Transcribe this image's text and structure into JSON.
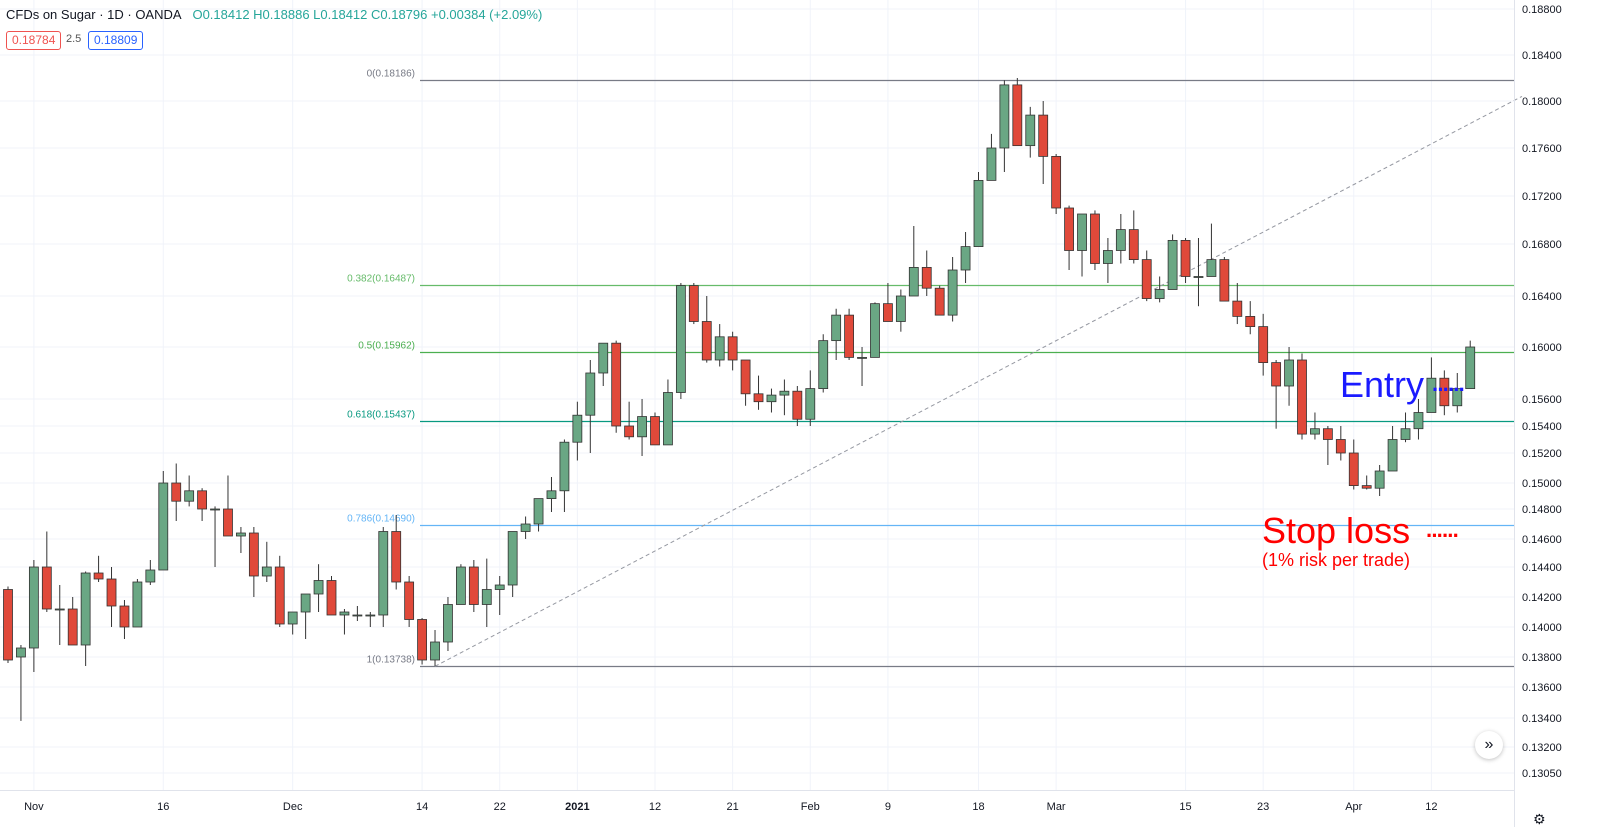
{
  "header": {
    "symbol": "CFDs on Sugar · 1D · OANDA",
    "ohlc": "O0.18412 H0.18886 L0.18412 C0.18796 +0.00384 (+2.09%)",
    "bid": "0.18784",
    "spread": "2.5",
    "ask": "0.18809"
  },
  "colors": {
    "up": "#6aa784",
    "down": "#e0493a",
    "bg": "#ffffff",
    "grid": "#f0f3fa"
  },
  "chart_data": {
    "type": "candlestick",
    "title": "",
    "ylim": [
      0.13,
      0.188
    ],
    "y_ticks": [
      "0.18800",
      "0.18400",
      "0.18000",
      "0.17600",
      "0.17200",
      "0.16800",
      "0.16400",
      "0.16000",
      "0.15600",
      "0.15400",
      "0.15200",
      "0.15000",
      "0.14800",
      "0.14600",
      "0.14400",
      "0.14200",
      "0.14000",
      "0.13800",
      "0.13600",
      "0.13400",
      "0.13200",
      "0.13050"
    ],
    "y_tick_values": [
      0.188,
      0.184,
      0.18,
      0.176,
      0.172,
      0.168,
      0.164,
      0.16,
      0.156,
      0.154,
      0.152,
      0.15,
      0.148,
      0.146,
      0.144,
      0.142,
      0.14,
      0.138,
      0.136,
      0.134,
      0.132,
      0.1305
    ],
    "x_ticks": [
      {
        "label": "Nov",
        "index": 2
      },
      {
        "label": "16",
        "index": 12
      },
      {
        "label": "Dec",
        "index": 22
      },
      {
        "label": "14",
        "index": 32
      },
      {
        "label": "22",
        "index": 38
      },
      {
        "label": "2021",
        "index": 44
      },
      {
        "label": "12",
        "index": 50
      },
      {
        "label": "21",
        "index": 56
      },
      {
        "label": "Feb",
        "index": 62
      },
      {
        "label": "9",
        "index": 68
      },
      {
        "label": "18",
        "index": 75
      },
      {
        "label": "Mar",
        "index": 81
      },
      {
        "label": "15",
        "index": 91
      },
      {
        "label": "23",
        "index": 97
      },
      {
        "label": "Apr",
        "index": 104
      },
      {
        "label": "12",
        "index": 110
      }
    ],
    "candles": [
      [
        0.1425,
        0.1427,
        0.1376,
        0.1378
      ],
      [
        0.138,
        0.1388,
        0.1338,
        0.1386
      ],
      [
        0.1386,
        0.1445,
        0.137,
        0.144
      ],
      [
        0.144,
        0.1465,
        0.141,
        0.1412
      ],
      [
        0.1412,
        0.1428,
        0.1388,
        0.1412
      ],
      [
        0.1412,
        0.142,
        0.1388,
        0.1388
      ],
      [
        0.1388,
        0.1437,
        0.1374,
        0.1436
      ],
      [
        0.1436,
        0.1448,
        0.143,
        0.1432
      ],
      [
        0.1432,
        0.144,
        0.14,
        0.1414
      ],
      [
        0.1414,
        0.1418,
        0.1392,
        0.14
      ],
      [
        0.14,
        0.1432,
        0.14,
        0.143
      ],
      [
        0.143,
        0.1445,
        0.1428,
        0.1438
      ],
      [
        0.1438,
        0.1508,
        0.1438,
        0.15
      ],
      [
        0.15,
        0.1513,
        0.1472,
        0.1486
      ],
      [
        0.1486,
        0.1505,
        0.1482,
        0.1494
      ],
      [
        0.1494,
        0.1496,
        0.1472,
        0.148
      ],
      [
        0.148,
        0.1482,
        0.144,
        0.148
      ],
      [
        0.148,
        0.1505,
        0.1462,
        0.1462
      ],
      [
        0.1462,
        0.1468,
        0.145,
        0.1464
      ],
      [
        0.1464,
        0.1468,
        0.142,
        0.1434
      ],
      [
        0.1434,
        0.1458,
        0.143,
        0.144
      ],
      [
        0.144,
        0.1448,
        0.14,
        0.1402
      ],
      [
        0.1402,
        0.141,
        0.1395,
        0.141
      ],
      [
        0.141,
        0.1422,
        0.1392,
        0.1422
      ],
      [
        0.1422,
        0.1442,
        0.141,
        0.1431
      ],
      [
        0.1431,
        0.1434,
        0.1408,
        0.1408
      ],
      [
        0.1408,
        0.1412,
        0.1395,
        0.141
      ],
      [
        0.1408,
        0.1414,
        0.1404,
        0.1408
      ],
      [
        0.1408,
        0.141,
        0.14,
        0.1408
      ],
      [
        0.1408,
        0.1468,
        0.14,
        0.1465
      ],
      [
        0.1465,
        0.1476,
        0.1425,
        0.143
      ],
      [
        0.143,
        0.1434,
        0.14,
        0.1405
      ],
      [
        0.1405,
        0.1406,
        0.1375,
        0.1378
      ],
      [
        0.1378,
        0.1398,
        0.1374,
        0.139
      ],
      [
        0.139,
        0.142,
        0.1384,
        0.1415
      ],
      [
        0.1415,
        0.1442,
        0.1415,
        0.144
      ],
      [
        0.144,
        0.1445,
        0.141,
        0.1415
      ],
      [
        0.1415,
        0.1446,
        0.14,
        0.1425
      ],
      [
        0.1425,
        0.1434,
        0.1408,
        0.1428
      ],
      [
        0.1428,
        0.1465,
        0.142,
        0.1465
      ],
      [
        0.1465,
        0.1475,
        0.146,
        0.147
      ],
      [
        0.147,
        0.1488,
        0.1465,
        0.1488
      ],
      [
        0.1488,
        0.1504,
        0.1478,
        0.1494
      ],
      [
        0.1494,
        0.153,
        0.1478,
        0.1528
      ],
      [
        0.1528,
        0.1558,
        0.1515,
        0.1548
      ],
      [
        0.1548,
        0.159,
        0.152,
        0.158
      ],
      [
        0.158,
        0.1603,
        0.157,
        0.1603
      ],
      [
        0.1603,
        0.1605,
        0.1535,
        0.154
      ],
      [
        0.154,
        0.1558,
        0.153,
        0.1532
      ],
      [
        0.1532,
        0.156,
        0.1518,
        0.1547
      ],
      [
        0.1547,
        0.155,
        0.1526,
        0.1526
      ],
      [
        0.1526,
        0.1575,
        0.1526,
        0.1565
      ],
      [
        0.1565,
        0.165,
        0.156,
        0.1648
      ],
      [
        0.1648,
        0.165,
        0.1618,
        0.162
      ],
      [
        0.162,
        0.164,
        0.1588,
        0.159
      ],
      [
        0.159,
        0.1618,
        0.1585,
        0.1608
      ],
      [
        0.1608,
        0.1612,
        0.1582,
        0.159
      ],
      [
        0.159,
        0.159,
        0.1555,
        0.1564
      ],
      [
        0.1564,
        0.1578,
        0.1552,
        0.1558
      ],
      [
        0.1558,
        0.1568,
        0.155,
        0.1563
      ],
      [
        0.1563,
        0.1575,
        0.1548,
        0.1566
      ],
      [
        0.1566,
        0.157,
        0.154,
        0.1545
      ],
      [
        0.1545,
        0.1582,
        0.154,
        0.1568
      ],
      [
        0.1568,
        0.161,
        0.1565,
        0.1605
      ],
      [
        0.1605,
        0.163,
        0.159,
        0.1625
      ],
      [
        0.1625,
        0.163,
        0.159,
        0.1592
      ],
      [
        0.1592,
        0.16,
        0.157,
        0.1592
      ],
      [
        0.1592,
        0.1635,
        0.1592,
        0.1634
      ],
      [
        0.1634,
        0.165,
        0.162,
        0.162
      ],
      [
        0.162,
        0.1645,
        0.1612,
        0.164
      ],
      [
        0.164,
        0.1695,
        0.164,
        0.1662
      ],
      [
        0.1662,
        0.1675,
        0.164,
        0.1646
      ],
      [
        0.1646,
        0.1648,
        0.1625,
        0.1625
      ],
      [
        0.1625,
        0.167,
        0.162,
        0.166
      ],
      [
        0.166,
        0.169,
        0.165,
        0.1678
      ],
      [
        0.1678,
        0.174,
        0.1678,
        0.1733
      ],
      [
        0.1733,
        0.1772,
        0.1733,
        0.176
      ],
      [
        0.176,
        0.1818,
        0.174,
        0.1814
      ],
      [
        0.1814,
        0.182,
        0.1762,
        0.1762
      ],
      [
        0.1762,
        0.1795,
        0.1752,
        0.1788
      ],
      [
        0.1788,
        0.18,
        0.173,
        0.1753
      ],
      [
        0.1753,
        0.1755,
        0.1705,
        0.171
      ],
      [
        0.171,
        0.1712,
        0.166,
        0.1675
      ],
      [
        0.1675,
        0.1705,
        0.1655,
        0.1705
      ],
      [
        0.1705,
        0.1708,
        0.166,
        0.1665
      ],
      [
        0.1665,
        0.1685,
        0.165,
        0.1675
      ],
      [
        0.1675,
        0.1705,
        0.1665,
        0.1692
      ],
      [
        0.1692,
        0.1708,
        0.1665,
        0.1668
      ],
      [
        0.1668,
        0.1675,
        0.1636,
        0.1638
      ],
      [
        0.1638,
        0.1655,
        0.1635,
        0.1645
      ],
      [
        0.1645,
        0.1688,
        0.1645,
        0.1683
      ],
      [
        0.1683,
        0.1685,
        0.165,
        0.1655
      ],
      [
        0.1655,
        0.1685,
        0.1632,
        0.1655
      ],
      [
        0.1655,
        0.1697,
        0.1655,
        0.1668
      ],
      [
        0.1668,
        0.167,
        0.1636,
        0.1636
      ],
      [
        0.1636,
        0.165,
        0.1618,
        0.1624
      ],
      [
        0.1624,
        0.1636,
        0.161,
        0.1616
      ],
      [
        0.1616,
        0.1626,
        0.1578,
        0.1588
      ],
      [
        0.1588,
        0.159,
        0.1538,
        0.157
      ],
      [
        0.157,
        0.16,
        0.1555,
        0.159
      ],
      [
        0.159,
        0.1595,
        0.153,
        0.1534
      ],
      [
        0.1534,
        0.155,
        0.153,
        0.1538
      ],
      [
        0.1538,
        0.154,
        0.1512,
        0.153
      ],
      [
        0.153,
        0.154,
        0.1515,
        0.152
      ],
      [
        0.152,
        0.153,
        0.1495,
        0.1498
      ],
      [
        0.1498,
        0.1505,
        0.1495,
        0.1496
      ],
      [
        0.1496,
        0.1512,
        0.149,
        0.1508
      ],
      [
        0.1508,
        0.154,
        0.1508,
        0.153
      ],
      [
        0.153,
        0.155,
        0.1528,
        0.1538
      ],
      [
        0.1538,
        0.156,
        0.153,
        0.155
      ],
      [
        0.155,
        0.1592,
        0.155,
        0.1576
      ],
      [
        0.1576,
        0.1582,
        0.1548,
        0.1555
      ],
      [
        0.1555,
        0.158,
        0.155,
        0.1568
      ],
      [
        0.1568,
        0.1605,
        0.1568,
        0.16
      ]
    ],
    "fib_levels": [
      {
        "label": "0(0.18186)",
        "value": 0.18186,
        "color": "#787b86"
      },
      {
        "label": "0.382(0.16487)",
        "value": 0.16487,
        "color": "#66bb6a"
      },
      {
        "label": "0.5(0.15962)",
        "value": 0.15962,
        "color": "#4caf50"
      },
      {
        "label": "0.618(0.15437)",
        "value": 0.15437,
        "color": "#089981"
      },
      {
        "label": "0.786(0.14690)",
        "value": 0.1469,
        "color": "#64b5f6"
      },
      {
        "label": "1(0.13738)",
        "value": 0.13738,
        "color": "#787b86"
      }
    ],
    "trend_line": {
      "from": [
        33,
        0.13738
      ],
      "to": [
        117,
        0.1804
      ]
    },
    "annotations": {
      "entry": {
        "text": "Entry",
        "dots": "······",
        "color": "#1a1aff"
      },
      "stop": {
        "text": "Stop loss",
        "dots": "······",
        "color": "#ff0000"
      },
      "risk": {
        "text": "(1% risk per trade)",
        "color": "#ff0000"
      }
    }
  }
}
